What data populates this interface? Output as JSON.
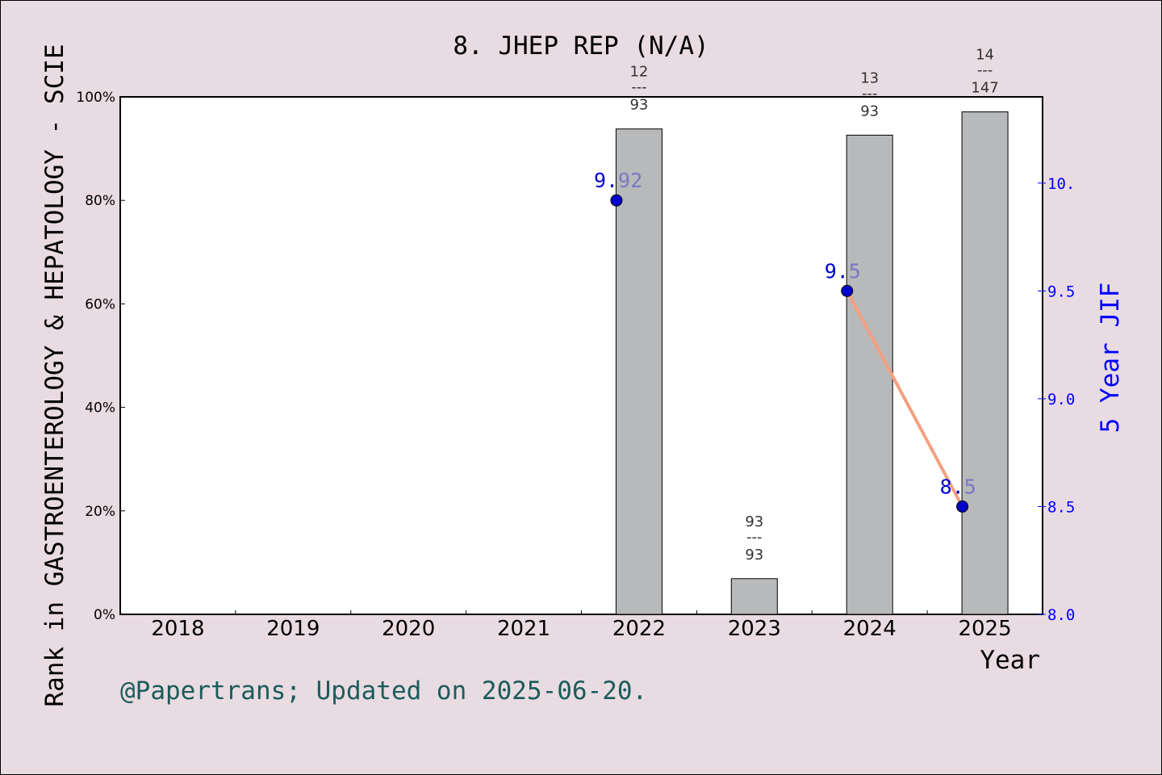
{
  "chart_data": {
    "type": "bar",
    "title": "8. JHEP REP (N/A)",
    "xlabel": "Year",
    "ylabel_left": "Rank in GASTROENTEROLOGY & HEPATOLOGY - SCIE",
    "ylabel_right": "5 Year JIF",
    "categories": [
      "2018",
      "2019",
      "2020",
      "2021",
      "2022",
      "2023",
      "2024",
      "2025"
    ],
    "ylim_left": [
      0,
      100
    ],
    "ylim_right": [
      8.0,
      10.4
    ],
    "left_ticks": [
      "0%",
      "20%",
      "40%",
      "60%",
      "80%",
      "100%"
    ],
    "left_tick_values": [
      0,
      20,
      40,
      60,
      80,
      100
    ],
    "right_ticks": [
      "8.0",
      "8.5",
      "9.0",
      "9.5",
      "10."
    ],
    "right_tick_values": [
      8.0,
      8.5,
      9.0,
      9.5,
      10.0
    ],
    "bars": [
      {
        "year": "2022",
        "value": 93.8,
        "rank": "12",
        "total": "93"
      },
      {
        "year": "2023",
        "value": 6.9,
        "rank": "93",
        "total": "93"
      },
      {
        "year": "2024",
        "value": 92.6,
        "rank": "13",
        "total": "93"
      },
      {
        "year": "2025",
        "value": 97.1,
        "rank": "14",
        "total": "147"
      }
    ],
    "rank_separator": "---",
    "jif_points": [
      {
        "year": "2022",
        "value": 9.92,
        "label_a": "9.",
        "label_b": "92"
      },
      {
        "year": "2024",
        "value": 9.5,
        "label_a": "9.",
        "label_b": "5"
      },
      {
        "year": "2025",
        "value": 8.5,
        "label_a": "8.",
        "label_b": "5"
      }
    ],
    "jif_line": [
      "2024",
      "2025"
    ],
    "grid": false,
    "colors": {
      "background": "#e9dbe2",
      "plot_bg": "#ffffff",
      "bar": "#b8b9ba",
      "point": "#0000cc",
      "point_label": "#0000cc",
      "point_label_light": "#7a78c4",
      "line": "#f4a080",
      "right_axis": "#0000ff",
      "footer": "#1a5c5a"
    }
  },
  "footer": "@Papertrans; Updated on 2025-06-20."
}
